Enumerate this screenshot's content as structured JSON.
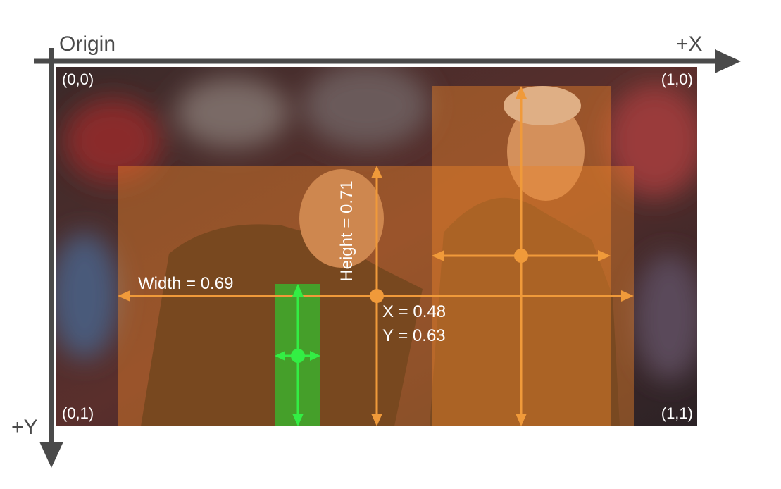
{
  "axes": {
    "origin": "Origin",
    "x": "+X",
    "y": "+Y"
  },
  "corners": {
    "top_left": "(0,0)",
    "top_right": "(1,0)",
    "bottom_left": "(0,1)",
    "bottom_right": "(1,1)"
  },
  "annotations": {
    "width": "Width = 0.69",
    "height": "Height = 0.71",
    "x": "X = 0.48",
    "y": "Y = 0.63"
  }
}
